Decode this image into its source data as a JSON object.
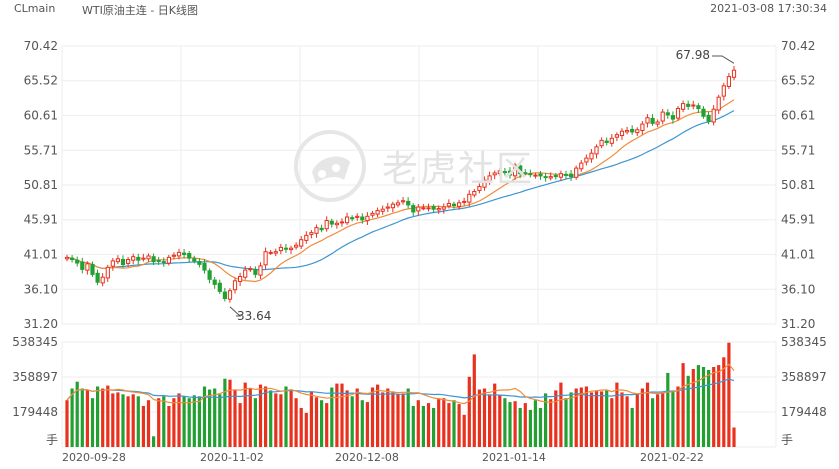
{
  "header": {
    "symbol": "CLmain",
    "title": "WTI原油主连 - 日K线图",
    "datetime": "2021-03-08 17:30:34"
  },
  "watermark": {
    "text": "老虎社区"
  },
  "colors": {
    "up": "#e8321e",
    "down": "#23a032",
    "ma_orange": "#f08c3c",
    "ma_blue": "#3c96d2",
    "grid": "#eeeeee"
  },
  "chart_data": [
    {
      "type": "candlestick",
      "title": "",
      "y_ticks": [
        "70.42",
        "65.52",
        "60.61",
        "55.71",
        "50.81",
        "45.91",
        "41.01",
        "36.10",
        "31.20"
      ],
      "ylim": [
        31.2,
        70.42
      ],
      "x_ticks": [
        "2020-09-28",
        "2020-11-02",
        "2020-12-08",
        "2021-01-14",
        "2021-02-22"
      ],
      "annotations": [
        {
          "text": "67.98",
          "type": "high"
        },
        {
          "text": "33.64",
          "type": "low"
        }
      ],
      "close": [
        40.6,
        40.3,
        39.8,
        38.9,
        39.7,
        38.2,
        37.1,
        37.8,
        39.2,
        40.1,
        40.4,
        39.6,
        40.3,
        40.7,
        40.2,
        40.5,
        40.8,
        40.0,
        40.1,
        39.9,
        40.6,
        40.9,
        41.3,
        41.0,
        40.5,
        40.1,
        39.6,
        38.8,
        37.5,
        36.8,
        35.8,
        34.8,
        35.9,
        37.3,
        37.9,
        38.8,
        39.0,
        38.2,
        39.4,
        41.4,
        41.3,
        41.4,
        42.0,
        41.8,
        41.9,
        42.3,
        43.1,
        43.7,
        44.1,
        44.8,
        44.5,
        45.8,
        45.3,
        45.4,
        45.6,
        46.3,
        46.1,
        46.4,
        45.9,
        46.4,
        46.8,
        47.2,
        47.4,
        47.7,
        48.1,
        48.3,
        48.6,
        48.0,
        47.0,
        47.7,
        47.6,
        47.6,
        47.4,
        47.5,
        47.7,
        48.2,
        47.9,
        48.3,
        48.5,
        49.5,
        49.9,
        50.6,
        51.5,
        52.1,
        52.5,
        52.8,
        52.6,
        52.2,
        53.6,
        52.4,
        52.5,
        52.3,
        52.2,
        52.1,
        51.9,
        52.0,
        52.0,
        52.4,
        52.2,
        52.0,
        53.2,
        53.9,
        54.6,
        55.3,
        56.2,
        57.1,
        56.8,
        57.4,
        57.9,
        58.4,
        58.5,
        58.3,
        58.6,
        59.4,
        60.3,
        59.5,
        59.7,
        61.1,
        60.7,
        60.1,
        61.6,
        62.3,
        61.9,
        62.1,
        61.6,
        60.5,
        59.8,
        61.5,
        63.2,
        64.8,
        66.1,
        67.0
      ],
      "ma_orange_note": "short moving average",
      "ma_blue_note": "long moving average",
      "volume": {
        "y_ticks": [
          "538345",
          "358897",
          "179448",
          "手"
        ],
        "ylim": [
          0,
          538345
        ],
        "values": [
          240000,
          300000,
          335000,
          300000,
          290000,
          250000,
          310000,
          300000,
          315000,
          275000,
          280000,
          270000,
          260000,
          270000,
          260000,
          210000,
          240000,
          55000,
          250000,
          260000,
          210000,
          250000,
          275000,
          260000,
          250000,
          265000,
          260000,
          310000,
          295000,
          300000,
          270000,
          350000,
          345000,
          290000,
          225000,
          330000,
          300000,
          250000,
          320000,
          310000,
          290000,
          275000,
          270000,
          310000,
          290000,
          250000,
          200000,
          175000,
          285000,
          255000,
          240000,
          225000,
          305000,
          325000,
          325000,
          290000,
          260000,
          300000,
          240000,
          230000,
          305000,
          320000,
          280000,
          300000,
          285000,
          270000,
          275000,
          300000,
          210000,
          240000,
          210000,
          225000,
          200000,
          250000,
          250000,
          225000,
          240000,
          220000,
          165000,
          360000,
          475000,
          295000,
          300000,
          270000,
          325000,
          265000,
          250000,
          230000,
          235000,
          200000,
          225000,
          190000,
          240000,
          200000,
          275000,
          245000,
          290000,
          330000,
          250000,
          280000,
          300000,
          305000,
          310000,
          280000,
          290000,
          285000,
          290000,
          250000,
          330000,
          280000,
          260000,
          200000,
          270000,
          300000,
          330000,
          250000,
          270000,
          280000,
          380000,
          290000,
          310000,
          430000,
          365000,
          400000,
          420000,
          410000,
          395000,
          410000,
          420000,
          460000,
          535000,
          100000
        ]
      }
    }
  ]
}
